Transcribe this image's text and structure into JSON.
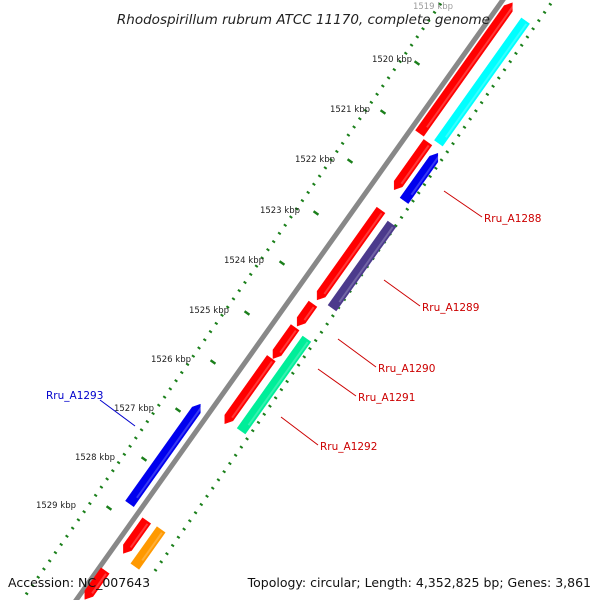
{
  "title": "Rhodospirillum rubrum ATCC 11170, complete genome",
  "footer": {
    "accession": "Accession: NC_007643",
    "topology": "Topology: circular; Length: 4,352,825 bp; Genes: 3,861"
  },
  "colors": {
    "backbone": "#8c8c8c",
    "ticks": "#1a7f1a",
    "label_red": "#cc0000",
    "label_blue": "#0000cc"
  },
  "scale_labels": [
    "1519 kbp",
    "1520 kbp",
    "1521 kbp",
    "1522 kbp",
    "1523 kbp",
    "1524 kbp",
    "1525 kbp",
    "1526 kbp",
    "1527 kbp",
    "1528 kbp",
    "1529 kbp"
  ],
  "gene_labels": [
    {
      "name": "Rru_A1288",
      "color": "#cc0000"
    },
    {
      "name": "Rru_A1289",
      "color": "#cc0000"
    },
    {
      "name": "Rru_A1290",
      "color": "#cc0000"
    },
    {
      "name": "Rru_A1291",
      "color": "#cc0000"
    },
    {
      "name": "Rru_A1292",
      "color": "#cc0000"
    },
    {
      "name": "Rru_A1293",
      "color": "#0000cc"
    }
  ],
  "features": [
    {
      "color": "#ff0000"
    },
    {
      "color": "#00ffff"
    },
    {
      "color": "#ff0000"
    },
    {
      "color": "#0000ee"
    },
    {
      "color": "#ff0000"
    },
    {
      "color": "#4b3a8c"
    },
    {
      "color": "#ff0000"
    },
    {
      "color": "#ff0000"
    },
    {
      "color": "#ff0000"
    },
    {
      "color": "#00ee99"
    },
    {
      "color": "#0000ee"
    },
    {
      "color": "#ff0000"
    },
    {
      "color": "#ff9900"
    },
    {
      "color": "#ff0000"
    }
  ]
}
